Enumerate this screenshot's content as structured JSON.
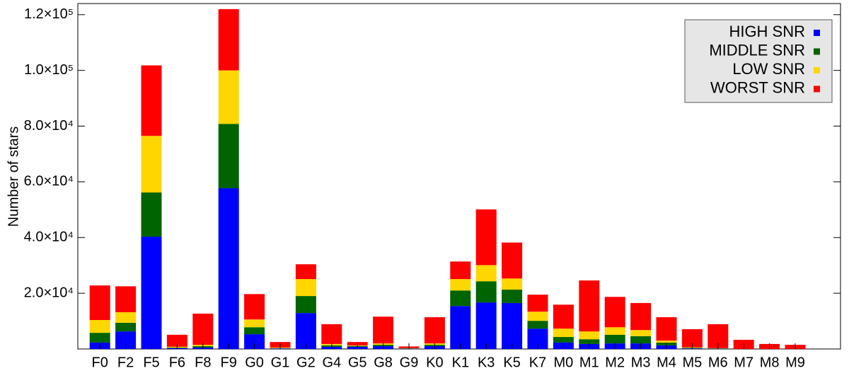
{
  "chart_data": {
    "type": "stacked_bar",
    "ylabel": "Number of stars",
    "categories": [
      "F0",
      "F2",
      "F5",
      "F6",
      "F8",
      "F9",
      "G0",
      "G1",
      "G2",
      "G4",
      "G5",
      "G8",
      "G9",
      "K0",
      "K1",
      "K3",
      "K5",
      "K7",
      "M0",
      "M1",
      "M2",
      "M3",
      "M4",
      "M5",
      "M6",
      "M7",
      "M8",
      "M9"
    ],
    "series": [
      {
        "name": "HIGH SNR",
        "color": "#0000ff",
        "values": [
          2300,
          6300,
          40300,
          300,
          500,
          57700,
          5300,
          200,
          12900,
          800,
          800,
          1000,
          100,
          1000,
          15400,
          16700,
          16500,
          7300,
          2300,
          1800,
          2000,
          2000,
          1300,
          200,
          100,
          0,
          0,
          0
        ]
      },
      {
        "name": "MIDDLE SNR",
        "color": "#006400",
        "values": [
          3500,
          3100,
          15900,
          200,
          500,
          23100,
          2500,
          100,
          6100,
          500,
          300,
          500,
          100,
          500,
          5600,
          7600,
          4800,
          2800,
          2000,
          1700,
          3100,
          2600,
          1000,
          200,
          100,
          0,
          0,
          0
        ]
      },
      {
        "name": "LOW SNR",
        "color": "#ffd700",
        "values": [
          4600,
          3800,
          20300,
          300,
          500,
          19200,
          2800,
          200,
          6100,
          500,
          200,
          500,
          100,
          500,
          4100,
          5800,
          4000,
          3300,
          3000,
          2800,
          2700,
          2200,
          700,
          200,
          100,
          0,
          0,
          0
        ]
      },
      {
        "name": "WORST SNR",
        "color": "#ff0000",
        "values": [
          12400,
          9300,
          25300,
          4300,
          11200,
          22000,
          9100,
          2000,
          5300,
          7100,
          1200,
          9600,
          600,
          9400,
          6300,
          20000,
          12900,
          6100,
          8600,
          18300,
          10900,
          9700,
          8400,
          6500,
          8600,
          3300,
          1800,
          1500
        ]
      }
    ],
    "ylim": [
      0,
      124000
    ],
    "yticks": [
      {
        "value": 20000,
        "label": "2.0×10⁴"
      },
      {
        "value": 40000,
        "label": "4.0×10⁴"
      },
      {
        "value": 60000,
        "label": "6.0×10⁴"
      },
      {
        "value": 80000,
        "label": "8.0×10⁴"
      },
      {
        "value": 100000,
        "label": "1.0×10⁵"
      },
      {
        "value": 120000,
        "label": "1.2×10⁵"
      }
    ],
    "legend": "top-right"
  }
}
